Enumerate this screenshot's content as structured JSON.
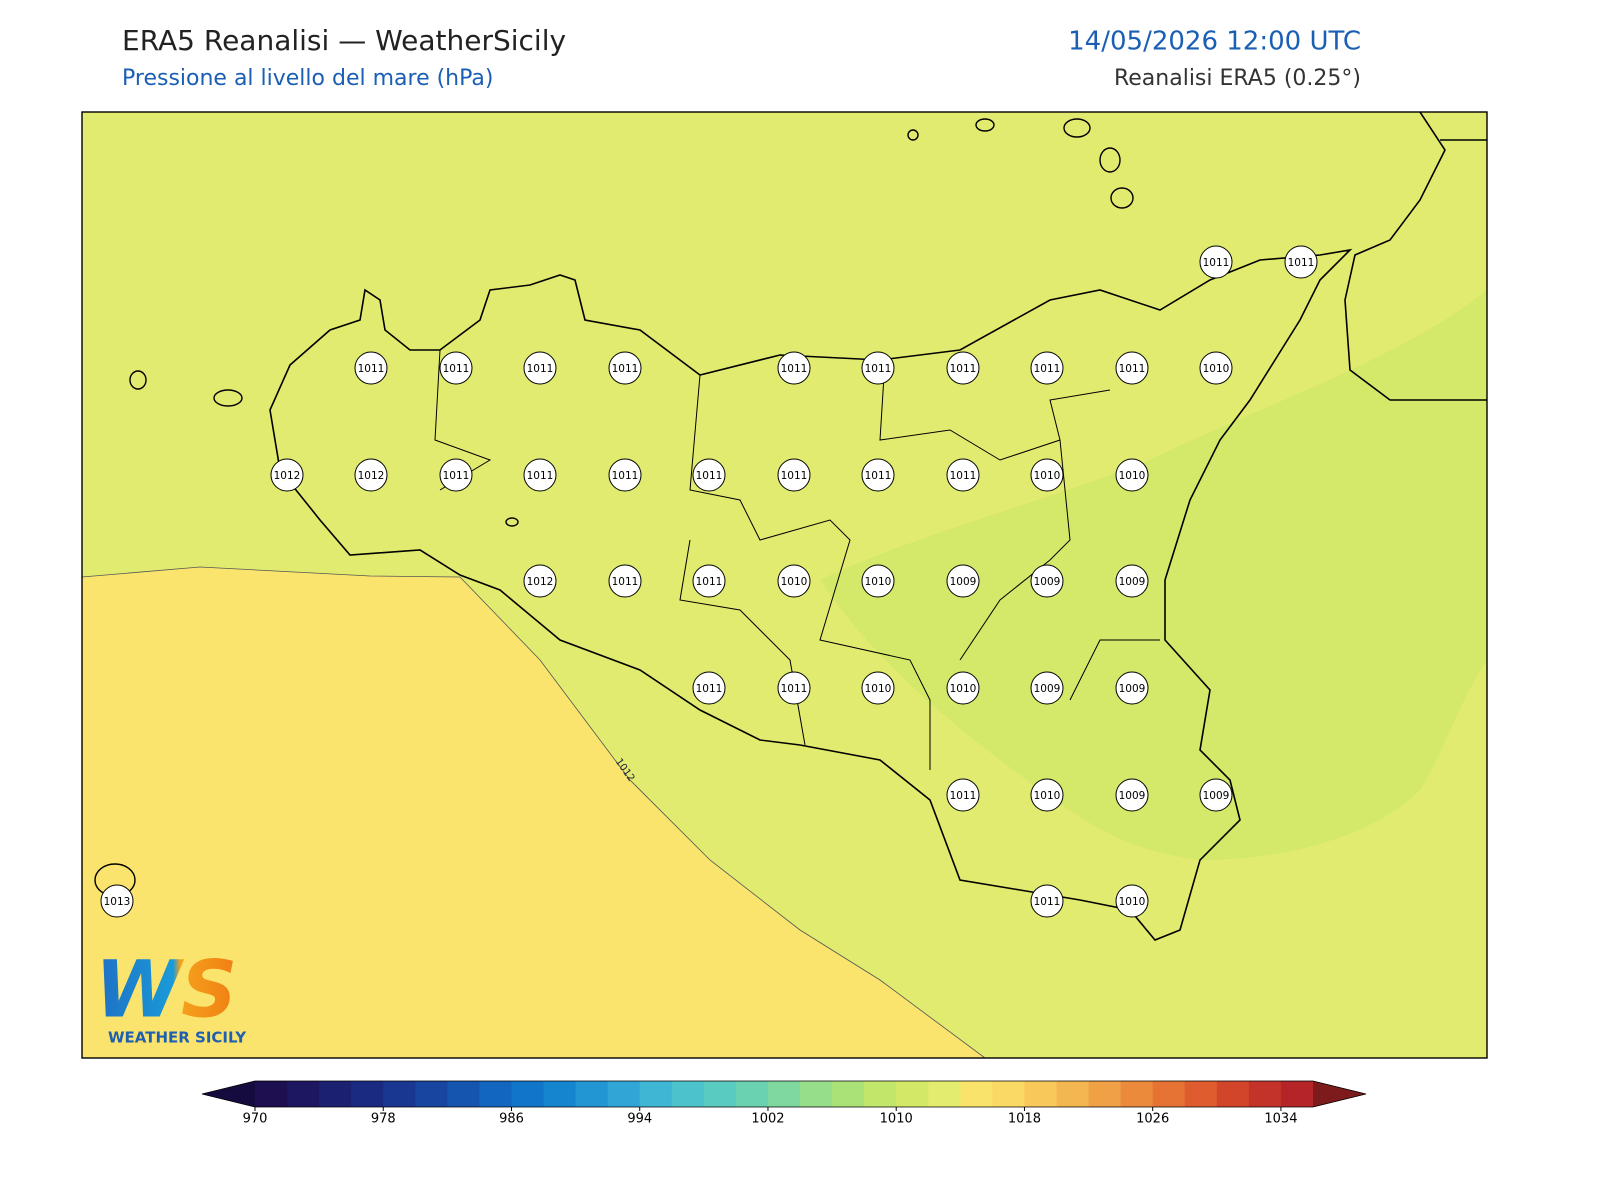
{
  "header": {
    "title": "ERA5 Reanalisi — WeatherSicily",
    "subtitle": "Pressione al livello del mare (hPa)",
    "datetime": "14/05/2026 12:00 UTC",
    "source": "Reanalisi ERA5 (0.25°)"
  },
  "map": {
    "contour_label": "1012",
    "stations": [
      {
        "value": 1011
      },
      {
        "value": 1011
      },
      {
        "value": 1011
      },
      {
        "value": 1011
      },
      {
        "value": 1011
      },
      {
        "value": 1011
      },
      {
        "value": 1011
      },
      {
        "value": 1011
      },
      {
        "value": 1011
      },
      {
        "value": 1011
      },
      {
        "value": 1011
      },
      {
        "value": 1010
      },
      {
        "value": 1012
      },
      {
        "value": 1012
      },
      {
        "value": 1011
      },
      {
        "value": 1011
      },
      {
        "value": 1011
      },
      {
        "value": 1011
      },
      {
        "value": 1011
      },
      {
        "value": 1011
      },
      {
        "value": 1011
      },
      {
        "value": 1010
      },
      {
        "value": 1010
      },
      {
        "value": 1012
      },
      {
        "value": 1011
      },
      {
        "value": 1011
      },
      {
        "value": 1010
      },
      {
        "value": 1010
      },
      {
        "value": 1009
      },
      {
        "value": 1009
      },
      {
        "value": 1009
      },
      {
        "value": 1011
      },
      {
        "value": 1011
      },
      {
        "value": 1010
      },
      {
        "value": 1010
      },
      {
        "value": 1009
      },
      {
        "value": 1009
      },
      {
        "value": 1011
      },
      {
        "value": 1010
      },
      {
        "value": 1009
      },
      {
        "value": 1009
      },
      {
        "value": 1013
      },
      {
        "value": 1011
      },
      {
        "value": 1010
      }
    ]
  },
  "colorbar": {
    "lim": [
      970,
      1036
    ],
    "ticks": [
      970,
      978,
      986,
      994,
      1002,
      1010,
      1018,
      1026,
      1034
    ],
    "colors": [
      "#1e0f50",
      "#1d1660",
      "#1c2070",
      "#1a2a80",
      "#193790",
      "#1745a0",
      "#1555b0",
      "#1366bf",
      "#1176c8",
      "#1585cf",
      "#2295d3",
      "#30a5d6",
      "#3fb6d4",
      "#4cc3cc",
      "#59cbbf",
      "#6ad2b0",
      "#7fd89e",
      "#96de8a",
      "#abe277",
      "#c1e66a",
      "#d3e867",
      "#e3ec6f",
      "#fae36a",
      "#fad964",
      "#f8c85a",
      "#f4b650",
      "#f0a145",
      "#ec8a3b",
      "#e67233",
      "#de5c2e",
      "#d2452b",
      "#c33329",
      "#b52427"
    ],
    "under_color": "#160b3e",
    "over_color": "#7d1b1c"
  },
  "logo": {
    "mark": "WS",
    "text": "WEATHER SICILY"
  }
}
